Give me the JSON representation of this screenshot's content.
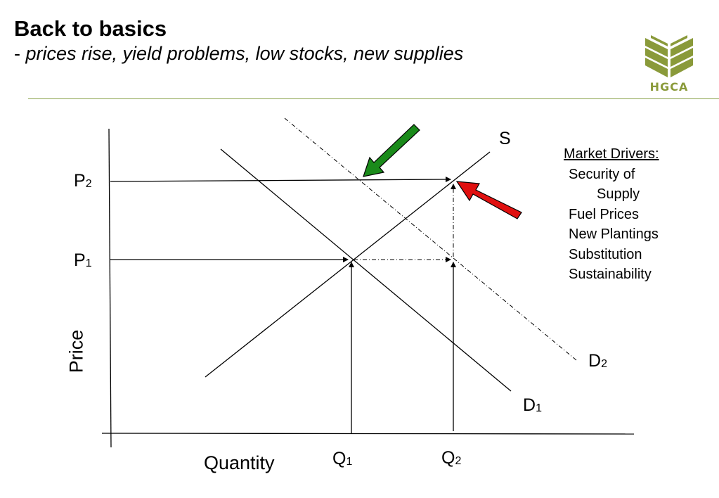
{
  "header": {
    "title": "Back to basics",
    "subtitle_dash": "-",
    "subtitle": "prices rise, yield problems, low stocks, new supplies"
  },
  "logo": {
    "text": "HGCA",
    "color": "#8a9a3a"
  },
  "diagram": {
    "supply_label": "S",
    "demand1_label": "D",
    "demand1_sub": "1",
    "demand2_label": "D",
    "demand2_sub": "2",
    "p1_label": "P",
    "p1_sub": "1",
    "p2_label": "P",
    "p2_sub": "2",
    "q1_label": "Q",
    "q1_sub": "1",
    "q2_label": "Q",
    "q2_sub": "2",
    "y_axis_label": "Price",
    "x_axis_label": "Quantity",
    "green_arrow_color": "#1a8a1a",
    "red_arrow_color": "#e01010"
  },
  "market_drivers": {
    "heading": "Market Drivers:",
    "items": [
      "Security of",
      "Supply",
      "Fuel Prices",
      "New Plantings",
      "Substitution",
      "Sustainability"
    ]
  }
}
